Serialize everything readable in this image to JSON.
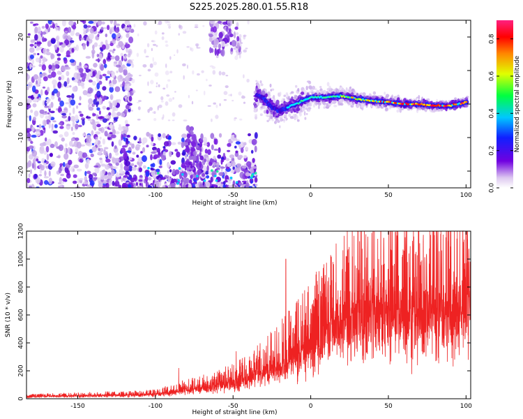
{
  "title": "S225.2025.280.01.55.R18",
  "chart_data": [
    {
      "type": "heatmap",
      "xlabel": "Height of straight line (km)",
      "ylabel": "Frequency (Hz)",
      "xlim": [
        -183,
        103
      ],
      "ylim": [
        -25,
        25
      ],
      "xticks": [
        -150,
        -100,
        -50,
        0,
        50,
        100
      ],
      "yticks": [
        -20,
        -10,
        0,
        10,
        20
      ],
      "colorbar": {
        "label": "Normalized spectral amplitude",
        "range": [
          0,
          0.9
        ],
        "ticks": [
          "0.0",
          "0.2",
          "0.4",
          "0.6",
          "0.8"
        ],
        "colormap": "rainbow (white-violet-blue-cyan-green-yellow-red)"
      },
      "features": {
        "carrier_line": {
          "x": [
            -35,
            -30,
            -25,
            -20,
            -15,
            -10,
            -5,
            0,
            10,
            20,
            30,
            40,
            50,
            60,
            70,
            80,
            90,
            100
          ],
          "freq_hz": [
            3,
            1.5,
            -1,
            -2,
            -1,
            0,
            1,
            2,
            2,
            2.5,
            1.5,
            1,
            0.5,
            0,
            0,
            -0.5,
            -0.5,
            0.5
          ]
        },
        "scattered_noise_region": {
          "x": [
            -183,
            -115
          ],
          "freq_hz": [
            -25,
            25
          ]
        },
        "low_freq_cluster": {
          "x": [
            -120,
            -35
          ],
          "freq_hz": [
            -25,
            -15
          ]
        },
        "high_freq_cluster": {
          "x": [
            -65,
            -45
          ],
          "freq_hz": [
            15,
            25
          ]
        }
      }
    },
    {
      "type": "line",
      "xlabel": "Height of straight line (km)",
      "ylabel": "SNR (10 * v/v)",
      "xlim": [
        -183,
        103
      ],
      "ylim": [
        0,
        1200
      ],
      "xticks": [
        -150,
        -100,
        -50,
        0,
        50,
        100
      ],
      "yticks": [
        0,
        200,
        400,
        600,
        800,
        1000,
        1200
      ],
      "series": [
        {
          "color": "#ee2222",
          "x": [
            -183,
            -150,
            -120,
            -100,
            -90,
            -80,
            -70,
            -60,
            -50,
            -40,
            -30,
            -20,
            -10,
            0,
            10,
            20,
            30,
            40,
            50,
            60,
            70,
            80,
            90,
            100,
            103
          ],
          "values": [
            15,
            20,
            25,
            30,
            45,
            60,
            75,
            90,
            110,
            140,
            190,
            240,
            300,
            380,
            450,
            520,
            570,
            610,
            600,
            590,
            580,
            590,
            600,
            620,
            620
          ],
          "peaks": [
            {
              "x": -85,
              "value": 220
            },
            {
              "x": -48,
              "value": 340
            },
            {
              "x": -16,
              "value": 1000
            },
            {
              "x": 32,
              "value": 1200
            },
            {
              "x": 47,
              "value": 1150
            },
            {
              "x": 60,
              "value": 1060
            }
          ]
        }
      ]
    }
  ]
}
